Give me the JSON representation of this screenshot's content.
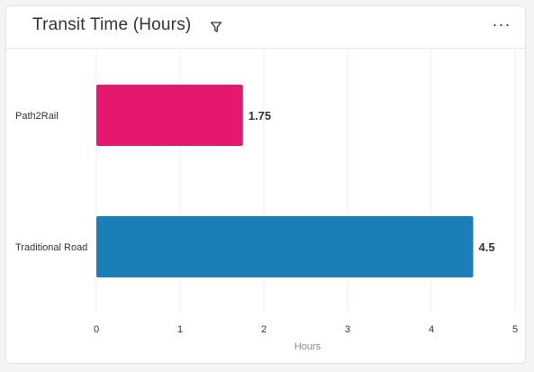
{
  "header": {
    "title": "Transit Time (Hours)",
    "filter_icon": "filter-icon",
    "menu_icon": "more-horizontal-icon",
    "menu_label": "···"
  },
  "chart_data": {
    "type": "bar",
    "orientation": "horizontal",
    "title": "Transit Time (Hours)",
    "categories": [
      "Path2Rail",
      "Traditional Road"
    ],
    "values": [
      1.75,
      4.5
    ],
    "value_labels": [
      "1.75",
      "4.5"
    ],
    "colors": [
      "#e5186f",
      "#1a7fb6"
    ],
    "xlabel": "Hours",
    "ylabel": "",
    "xlim": [
      0,
      5
    ],
    "xticks": [
      "0",
      "1",
      "2",
      "3",
      "4",
      "5"
    ],
    "grid": true
  }
}
